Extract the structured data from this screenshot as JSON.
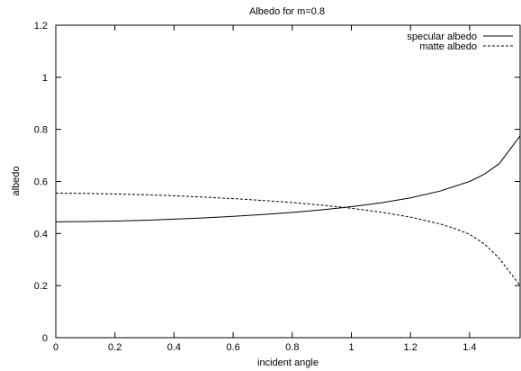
{
  "chart_data": {
    "type": "line",
    "title": "Albedo for m=0.8",
    "xlabel": "incident angle",
    "ylabel": "albedo",
    "xlim": [
      0,
      1.5708
    ],
    "ylim": [
      0,
      1.2
    ],
    "x_ticks": [
      "0",
      "0.2",
      "0.4",
      "0.6",
      "0.8",
      "1",
      "1.2",
      "1.4"
    ],
    "y_ticks": [
      "0",
      "0.2",
      "0.4",
      "0.6",
      "0.8",
      "1",
      "1.2"
    ],
    "legend_position": "top-right",
    "grid": false,
    "series": [
      {
        "name": "specular albedo",
        "style": "solid",
        "color": "#000000",
        "x": [
          0,
          0.1,
          0.2,
          0.3,
          0.4,
          0.5,
          0.6,
          0.7,
          0.8,
          0.9,
          1.0,
          1.1,
          1.2,
          1.3,
          1.4,
          1.45,
          1.5,
          1.5708
        ],
        "y": [
          0.445,
          0.446,
          0.448,
          0.451,
          0.455,
          0.46,
          0.466,
          0.473,
          0.481,
          0.491,
          0.503,
          0.518,
          0.537,
          0.563,
          0.6,
          0.628,
          0.668,
          0.775
        ]
      },
      {
        "name": "matte albedo",
        "style": "dashed",
        "color": "#000000",
        "x": [
          0,
          0.1,
          0.2,
          0.3,
          0.4,
          0.5,
          0.6,
          0.7,
          0.8,
          0.9,
          1.0,
          1.1,
          1.2,
          1.3,
          1.35,
          1.4,
          1.45,
          1.5,
          1.5708
        ],
        "y": [
          0.555,
          0.554,
          0.552,
          0.549,
          0.545,
          0.54,
          0.534,
          0.527,
          0.519,
          0.509,
          0.497,
          0.482,
          0.463,
          0.437,
          0.419,
          0.397,
          0.36,
          0.305,
          0.2
        ]
      }
    ]
  }
}
